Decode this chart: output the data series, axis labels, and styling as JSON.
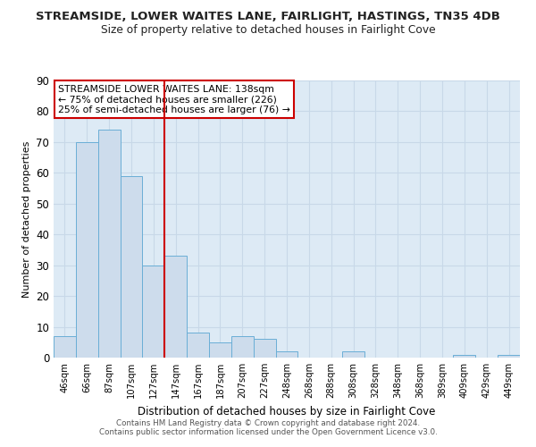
{
  "title": "STREAMSIDE, LOWER WAITES LANE, FAIRLIGHT, HASTINGS, TN35 4DB",
  "subtitle": "Size of property relative to detached houses in Fairlight Cove",
  "xlabel": "Distribution of detached houses by size in Fairlight Cove",
  "ylabel": "Number of detached properties",
  "footer1": "Contains HM Land Registry data © Crown copyright and database right 2024.",
  "footer2": "Contains public sector information licensed under the Open Government Licence v3.0.",
  "bin_labels": [
    "46sqm",
    "66sqm",
    "87sqm",
    "107sqm",
    "127sqm",
    "147sqm",
    "167sqm",
    "187sqm",
    "207sqm",
    "227sqm",
    "248sqm",
    "268sqm",
    "288sqm",
    "308sqm",
    "328sqm",
    "348sqm",
    "368sqm",
    "389sqm",
    "409sqm",
    "429sqm",
    "449sqm"
  ],
  "bar_heights": [
    7,
    70,
    74,
    59,
    30,
    33,
    8,
    5,
    7,
    6,
    2,
    0,
    0,
    2,
    0,
    0,
    0,
    0,
    1,
    0,
    1
  ],
  "bar_color": "#cddcec",
  "bar_edge_color": "#6aaed6",
  "vline_x_index": 4.5,
  "vline_color": "#cc0000",
  "annotation_line1": "STREAMSIDE LOWER WAITES LANE: 138sqm",
  "annotation_line2": "← 75% of detached houses are smaller (226)",
  "annotation_line3": "25% of semi-detached houses are larger (76) →",
  "annotation_box_color": "#ffffff",
  "annotation_box_edge_color": "#cc0000",
  "ylim": [
    0,
    90
  ],
  "yticks": [
    0,
    10,
    20,
    30,
    40,
    50,
    60,
    70,
    80,
    90
  ],
  "grid_color": "#c8d8e8",
  "background_color": "#ddeaf5"
}
